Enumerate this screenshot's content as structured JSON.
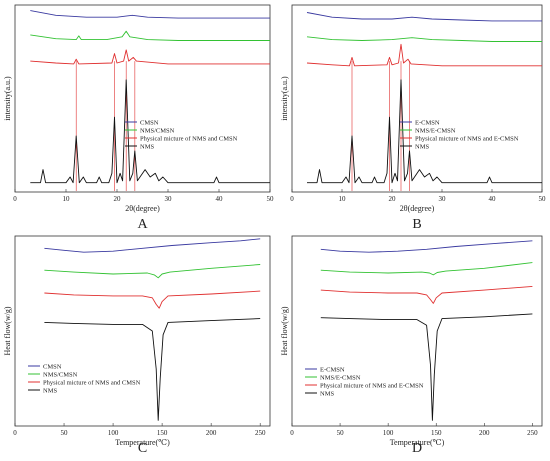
{
  "chart_data": [
    {
      "panel_label": "A",
      "type": "line",
      "title": "",
      "xlabel": "2θ(degree)",
      "ylabel": "intensity(a.u.)",
      "xlim": [
        0,
        50
      ],
      "xticks": [
        0,
        10,
        20,
        30,
        40,
        50
      ],
      "yticks_shown": false,
      "legend_position": "center-right",
      "reference_lines_color": "#e03030",
      "reference_lines_x": [
        12.0,
        19.5,
        21.8,
        23.5
      ],
      "series": [
        {
          "name": "CMSN",
          "color": "#3a3aa0",
          "x": [
            3,
            8,
            14,
            20,
            23,
            26,
            32,
            38,
            44,
            50
          ],
          "y": [
            0.97,
            0.945,
            0.935,
            0.935,
            0.945,
            0.935,
            0.93,
            0.93,
            0.93,
            0.93
          ]
        },
        {
          "name": "NMS/CMSN",
          "color": "#33c233",
          "x": [
            3,
            8,
            12,
            12.5,
            13,
            18,
            21,
            21.8,
            22.5,
            26,
            32,
            40,
            50
          ],
          "y": [
            0.84,
            0.82,
            0.815,
            0.835,
            0.815,
            0.815,
            0.83,
            0.86,
            0.83,
            0.815,
            0.81,
            0.81,
            0.81
          ]
        },
        {
          "name": "Physical micture of NMS and CMSN",
          "color": "#e03030",
          "x": [
            3,
            8,
            11.5,
            12,
            12.5,
            19,
            19.5,
            20,
            21.3,
            21.8,
            22.3,
            23.2,
            23.8,
            30,
            40,
            50
          ],
          "y": [
            0.7,
            0.69,
            0.685,
            0.71,
            0.685,
            0.69,
            0.74,
            0.69,
            0.7,
            0.76,
            0.7,
            0.72,
            0.7,
            0.685,
            0.685,
            0.685
          ]
        },
        {
          "name": "NMS",
          "color": "#111111",
          "x": [
            3,
            5,
            5.5,
            6,
            10,
            10.8,
            11.4,
            12,
            12.6,
            13.4,
            14,
            16,
            16.5,
            17,
            18.4,
            19,
            19.5,
            20,
            20.6,
            21.1,
            21.8,
            22.5,
            23.1,
            23.5,
            24,
            25.5,
            26.5,
            27.5,
            28.2,
            29,
            30,
            35,
            39,
            39.5,
            40,
            45,
            50
          ],
          "y": [
            0.05,
            0.05,
            0.12,
            0.05,
            0.05,
            0.08,
            0.05,
            0.3,
            0.05,
            0.08,
            0.05,
            0.05,
            0.08,
            0.05,
            0.05,
            0.1,
            0.4,
            0.05,
            0.1,
            0.06,
            0.6,
            0.06,
            0.1,
            0.22,
            0.06,
            0.12,
            0.08,
            0.1,
            0.06,
            0.08,
            0.05,
            0.05,
            0.05,
            0.08,
            0.05,
            0.05,
            0.05
          ]
        }
      ]
    },
    {
      "panel_label": "B",
      "type": "line",
      "title": "",
      "xlabel": "2θ(degree)",
      "ylabel": "intensity(a.u.)",
      "xlim": [
        0,
        50
      ],
      "xticks": [
        0,
        10,
        20,
        30,
        40,
        50
      ],
      "yticks_shown": false,
      "legend_position": "center-right",
      "reference_lines_color": "#e03030",
      "reference_lines_x": [
        12.0,
        19.5,
        21.8,
        23.5
      ],
      "series": [
        {
          "name": "E-CMSN",
          "color": "#3a3aa0",
          "x": [
            3,
            8,
            14,
            20,
            24,
            28,
            34,
            40,
            50
          ],
          "y": [
            0.96,
            0.935,
            0.925,
            0.925,
            0.935,
            0.925,
            0.92,
            0.915,
            0.915
          ]
        },
        {
          "name": "NMS/E-CMSN",
          "color": "#33c233",
          "x": [
            3,
            8,
            14,
            20,
            24,
            28,
            34,
            40,
            50
          ],
          "y": [
            0.83,
            0.815,
            0.81,
            0.815,
            0.825,
            0.815,
            0.81,
            0.805,
            0.805
          ]
        },
        {
          "name": "Physical micture of NMS and E-CMSN",
          "color": "#e03030",
          "x": [
            3,
            8,
            11.5,
            12,
            12.5,
            19,
            19.5,
            20,
            21.3,
            21.8,
            22.3,
            23.2,
            23.8,
            30,
            40,
            50
          ],
          "y": [
            0.69,
            0.68,
            0.675,
            0.72,
            0.675,
            0.68,
            0.72,
            0.68,
            0.69,
            0.79,
            0.69,
            0.71,
            0.685,
            0.675,
            0.675,
            0.675
          ]
        },
        {
          "name": "NMS",
          "color": "#111111",
          "x": [
            3,
            5,
            5.5,
            6,
            10,
            10.8,
            11.4,
            12,
            12.6,
            13.4,
            14,
            16,
            16.5,
            17,
            18.4,
            19,
            19.5,
            20,
            20.6,
            21.1,
            21.8,
            22.5,
            23.1,
            23.5,
            24,
            25.5,
            26.5,
            27.5,
            28.2,
            29,
            30,
            35,
            39,
            39.5,
            40,
            45,
            50
          ],
          "y": [
            0.05,
            0.05,
            0.12,
            0.05,
            0.05,
            0.08,
            0.05,
            0.3,
            0.05,
            0.08,
            0.05,
            0.05,
            0.08,
            0.05,
            0.05,
            0.1,
            0.4,
            0.05,
            0.1,
            0.06,
            0.6,
            0.06,
            0.1,
            0.22,
            0.06,
            0.12,
            0.08,
            0.1,
            0.06,
            0.08,
            0.05,
            0.05,
            0.05,
            0.08,
            0.05,
            0.05,
            0.05
          ]
        }
      ]
    },
    {
      "panel_label": "C",
      "type": "line",
      "title": "",
      "xlabel": "Temperature(℃)",
      "ylabel": "Heat flow(w/g)",
      "xlim": [
        0,
        260
      ],
      "xticks": [
        0,
        50,
        100,
        150,
        200,
        250
      ],
      "yticks_shown": false,
      "legend_position": "lower-left",
      "series": [
        {
          "name": "CMSN",
          "color": "#3a3aa0",
          "x": [
            30,
            50,
            70,
            100,
            130,
            160,
            200,
            230,
            250
          ],
          "y": [
            0.935,
            0.925,
            0.915,
            0.92,
            0.935,
            0.95,
            0.965,
            0.975,
            0.985
          ]
        },
        {
          "name": "NMS/CMSN",
          "color": "#33c233",
          "x": [
            30,
            60,
            100,
            135,
            142,
            146,
            150,
            158,
            200,
            250
          ],
          "y": [
            0.82,
            0.81,
            0.8,
            0.805,
            0.795,
            0.78,
            0.8,
            0.81,
            0.83,
            0.85
          ]
        },
        {
          "name": "Physical micture of NMS and CMSN",
          "color": "#e03030",
          "x": [
            30,
            60,
            100,
            130,
            140,
            144,
            147,
            150,
            156,
            200,
            250
          ],
          "y": [
            0.7,
            0.69,
            0.685,
            0.685,
            0.675,
            0.64,
            0.62,
            0.655,
            0.685,
            0.695,
            0.71
          ]
        },
        {
          "name": "NMS",
          "color": "#111111",
          "x": [
            30,
            60,
            100,
            130,
            140,
            144,
            146,
            148,
            151,
            156,
            200,
            250
          ],
          "y": [
            0.545,
            0.54,
            0.535,
            0.535,
            0.5,
            0.3,
            0.03,
            0.25,
            0.48,
            0.545,
            0.555,
            0.565
          ]
        }
      ]
    },
    {
      "panel_label": "D",
      "type": "line",
      "title": "",
      "xlabel": "Temperature(℃)",
      "ylabel": "Heat flow(w/g)",
      "xlim": [
        0,
        260
      ],
      "xticks": [
        0,
        50,
        100,
        150,
        200,
        250
      ],
      "yticks_shown": false,
      "legend_position": "lower-left",
      "series": [
        {
          "name": "E-CMSN",
          "color": "#3a3aa0",
          "x": [
            30,
            50,
            80,
            110,
            140,
            170,
            210,
            250
          ],
          "y": [
            0.93,
            0.92,
            0.915,
            0.92,
            0.93,
            0.945,
            0.96,
            0.975
          ]
        },
        {
          "name": "NMS/E-CMSN",
          "color": "#33c233",
          "x": [
            30,
            60,
            100,
            135,
            143,
            147,
            151,
            160,
            200,
            250
          ],
          "y": [
            0.82,
            0.81,
            0.805,
            0.81,
            0.805,
            0.795,
            0.808,
            0.815,
            0.83,
            0.86
          ]
        },
        {
          "name": "Physical micture of NMS and E-CMSN",
          "color": "#e03030",
          "x": [
            30,
            60,
            100,
            130,
            140,
            144,
            147,
            150,
            156,
            200,
            250
          ],
          "y": [
            0.715,
            0.705,
            0.7,
            0.7,
            0.69,
            0.665,
            0.645,
            0.675,
            0.7,
            0.715,
            0.735
          ]
        },
        {
          "name": "NMS",
          "color": "#111111",
          "x": [
            30,
            60,
            100,
            130,
            140,
            144,
            146,
            148,
            151,
            156,
            200,
            250
          ],
          "y": [
            0.57,
            0.565,
            0.56,
            0.56,
            0.53,
            0.32,
            0.03,
            0.27,
            0.5,
            0.565,
            0.575,
            0.59
          ]
        }
      ]
    }
  ]
}
